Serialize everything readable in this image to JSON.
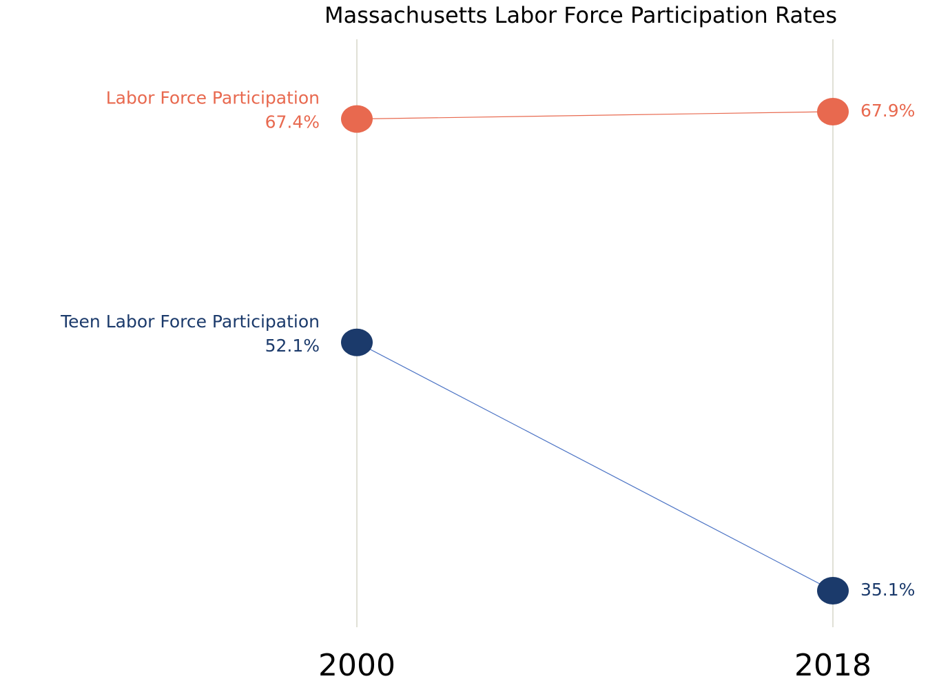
{
  "chart_data": {
    "type": "slope",
    "title": "Massachusetts Labor Force Participation Rates",
    "categories": [
      "2000",
      "2018"
    ],
    "series": [
      {
        "name": "Labor Force Participation",
        "color": "#e8694f",
        "values": [
          67.4,
          67.9
        ],
        "value_labels": [
          "67.4%",
          "67.9%"
        ]
      },
      {
        "name": "Teen Labor Force Participation",
        "color": "#1b3a6b",
        "values": [
          52.1,
          35.1
        ],
        "value_labels": [
          "52.1%",
          "35.1%"
        ]
      }
    ]
  }
}
